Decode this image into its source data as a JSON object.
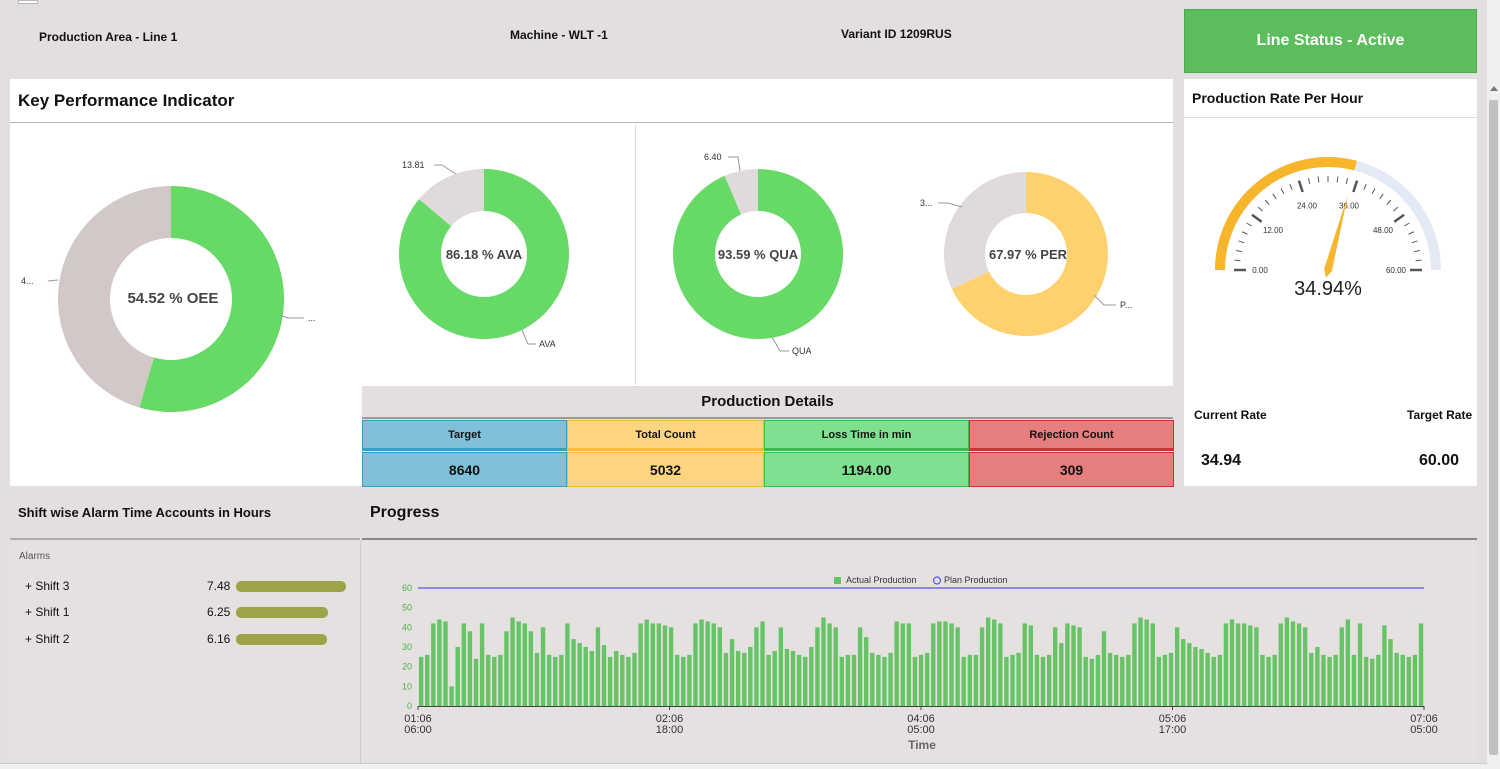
{
  "header": {
    "production_area": "Production Area - Line 1",
    "machine": "Machine - WLT -1",
    "variant": "Variant ID 1209RUS",
    "line_status": "Line Status - Active",
    "line_status_color": "#5cbd5c"
  },
  "kpi": {
    "title": "Key Performance Indicator",
    "oee": {
      "center_label": "54.52  % OEE",
      "value": 54.52,
      "left_label": "4...",
      "right_label": "...",
      "color": "#66d966",
      "rest_color": "#d2c8c8"
    },
    "ava": {
      "center_label": "86.18 % AVA",
      "value": 86.18,
      "top_label": "13.81",
      "series_label": "AVA",
      "color": "#66d966",
      "rest_color": "#e0dada"
    },
    "qua": {
      "center_label": "93.59 %  QUA",
      "value": 93.59,
      "top_label": "6.40",
      "series_label": "QUA",
      "color": "#66d966",
      "rest_color": "#e0dada"
    },
    "per": {
      "center_label": "67.97 % PER",
      "value": 67.97,
      "top_label": "3...",
      "series_label": "P...",
      "color": "#fdd16e",
      "rest_color": "#e0dada"
    }
  },
  "production_details": {
    "title": "Production Details",
    "columns": [
      {
        "label": "Target",
        "value": "8640",
        "color": "#7fc1d9",
        "border": "#3a9fc4"
      },
      {
        "label": "Total Count",
        "value": "5032",
        "color": "#fdd580",
        "border": "#f2bb3c"
      },
      {
        "label": "Loss Time in min",
        "value": "1194.00",
        "color": "#7fe08f",
        "border": "#3cba50"
      },
      {
        "label": "Rejection Count",
        "value": "309",
        "color": "#e67e7e",
        "border": "#cc3333"
      }
    ]
  },
  "rate": {
    "title": "Production Rate Per Hour",
    "gauge_value": 34.94,
    "gauge_max": 60,
    "gauge_label": "34.94%",
    "ticks": [
      "0.00",
      "12.00",
      "24.00",
      "36.00",
      "48.00",
      "60.00"
    ],
    "fill_color": "#f7b52b",
    "track_color": "#e3e9f5",
    "current_label": "Current Rate",
    "target_label": "Target Rate",
    "current_value": "34.94",
    "target_value": "60.00"
  },
  "alarms": {
    "title": "Shift wise Alarm Time Accounts in Hours",
    "header": "Alarms",
    "bar_color": "#9ea34a",
    "max": 7.48,
    "items": [
      {
        "label": "+ Shift 3",
        "value_text": "7.48",
        "value": 7.48
      },
      {
        "label": "+ Shift 1",
        "value_text": "6.25",
        "value": 6.25
      },
      {
        "label": "+ Shift 2",
        "value_text": "6.16",
        "value": 6.16
      }
    ]
  },
  "progress": {
    "title": "Progress"
  },
  "chart_data": {
    "type": "bar",
    "xlabel": "Time",
    "ylabel": "",
    "ylim": [
      0,
      60
    ],
    "yticks": [
      "0",
      "10",
      "20",
      "30",
      "40",
      "50",
      "60"
    ],
    "xticks": [
      {
        "top": "01:06",
        "bottom": "06:00"
      },
      {
        "top": "02:06",
        "bottom": "18:00"
      },
      {
        "top": "04:06",
        "bottom": "05:00"
      },
      {
        "top": "05:06",
        "bottom": "17:00"
      },
      {
        "top": "07:06",
        "bottom": "05:00"
      }
    ],
    "legend": {
      "position": "top",
      "actual": "Actual Production",
      "plan": "Plan Production"
    },
    "plan_value": 60,
    "bar_color": "#66c466",
    "plan_color": "#5555ee",
    "series": [
      {
        "name": "Actual Production",
        "values": [
          25,
          26,
          42,
          44,
          43,
          10,
          30,
          42,
          38,
          24,
          42,
          26,
          25,
          26,
          38,
          45,
          43,
          42,
          38,
          27,
          40,
          26,
          25,
          26,
          42,
          34,
          32,
          30,
          28,
          40,
          31,
          25,
          28,
          26,
          25,
          27,
          42,
          44,
          42,
          42,
          41,
          40,
          26,
          25,
          26,
          42,
          44,
          43,
          42,
          40,
          27,
          34,
          28,
          27,
          30,
          40,
          43,
          26,
          28,
          40,
          29,
          28,
          26,
          25,
          30,
          40,
          45,
          42,
          40,
          25,
          26,
          26,
          40,
          35,
          27,
          26,
          25,
          27,
          43,
          42,
          42,
          25,
          26,
          27,
          42,
          43,
          43,
          42,
          40,
          25,
          26,
          26,
          40,
          45,
          44,
          42,
          25,
          26,
          27,
          42,
          41,
          26,
          25,
          26,
          40,
          32,
          42,
          41,
          40,
          25,
          24,
          26,
          38,
          27,
          26,
          25,
          26,
          42,
          45,
          44,
          42,
          25,
          26,
          27,
          40,
          34,
          32,
          30,
          29,
          27,
          25,
          26,
          42,
          44,
          42,
          42,
          41,
          40,
          26,
          25,
          26,
          42,
          45,
          43,
          42,
          40,
          27,
          30,
          26,
          25,
          26,
          40,
          44,
          26,
          42,
          25,
          24,
          26,
          41,
          34,
          27,
          26,
          25,
          26,
          42
        ]
      }
    ]
  }
}
